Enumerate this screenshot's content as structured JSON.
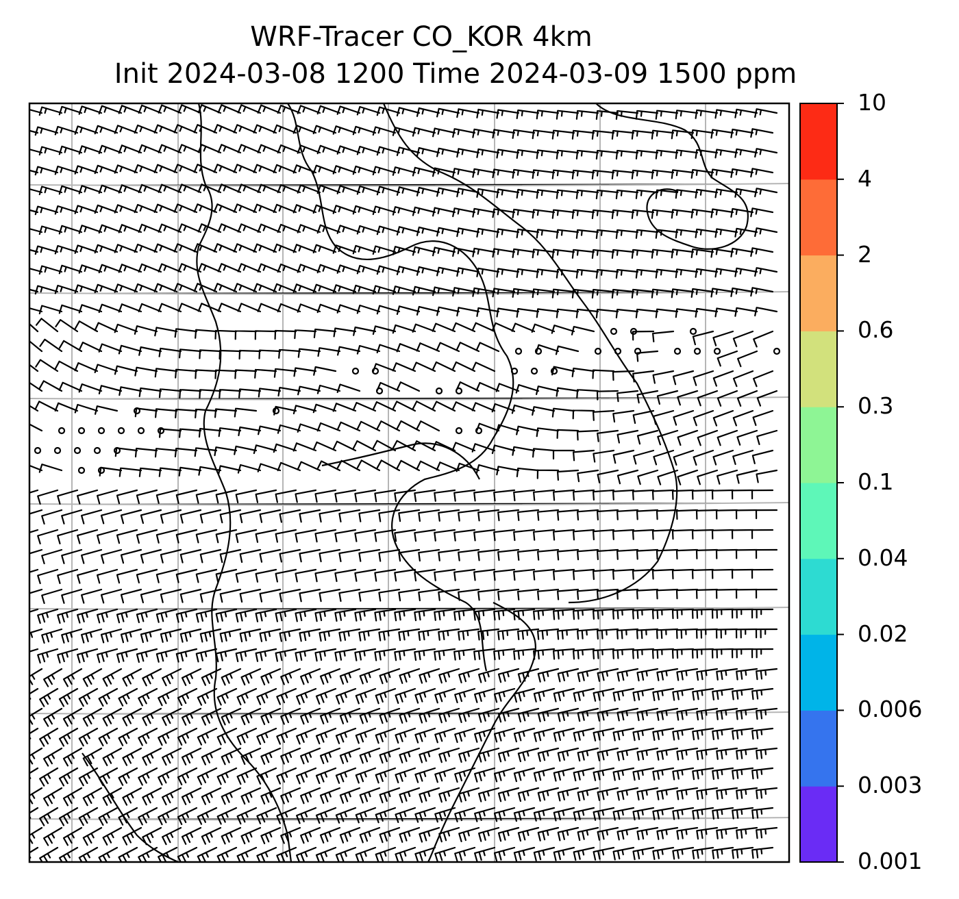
{
  "title": {
    "line1": "WRF-Tracer CO_KOR 4km",
    "line2": "Init 2024-03-08 1200 Time 2024-03-09 1500 ppm"
  },
  "colorbar": {
    "levels": [
      "0.001",
      "0.003",
      "0.006",
      "0.02",
      "0.04",
      "0.1",
      "0.3",
      "0.6",
      "2",
      "4",
      "10"
    ],
    "colors": [
      "#6a2cf5",
      "#3574ee",
      "#00b4e8",
      "#2ddbd2",
      "#5ef7b8",
      "#8ef595",
      "#d2e17c",
      "#fbad5f",
      "#fe6c37",
      "#fd2b15"
    ]
  },
  "map": {
    "grid_color": "#b5b5b5",
    "calm_region": "central band of calm-wind circles across the map"
  }
}
